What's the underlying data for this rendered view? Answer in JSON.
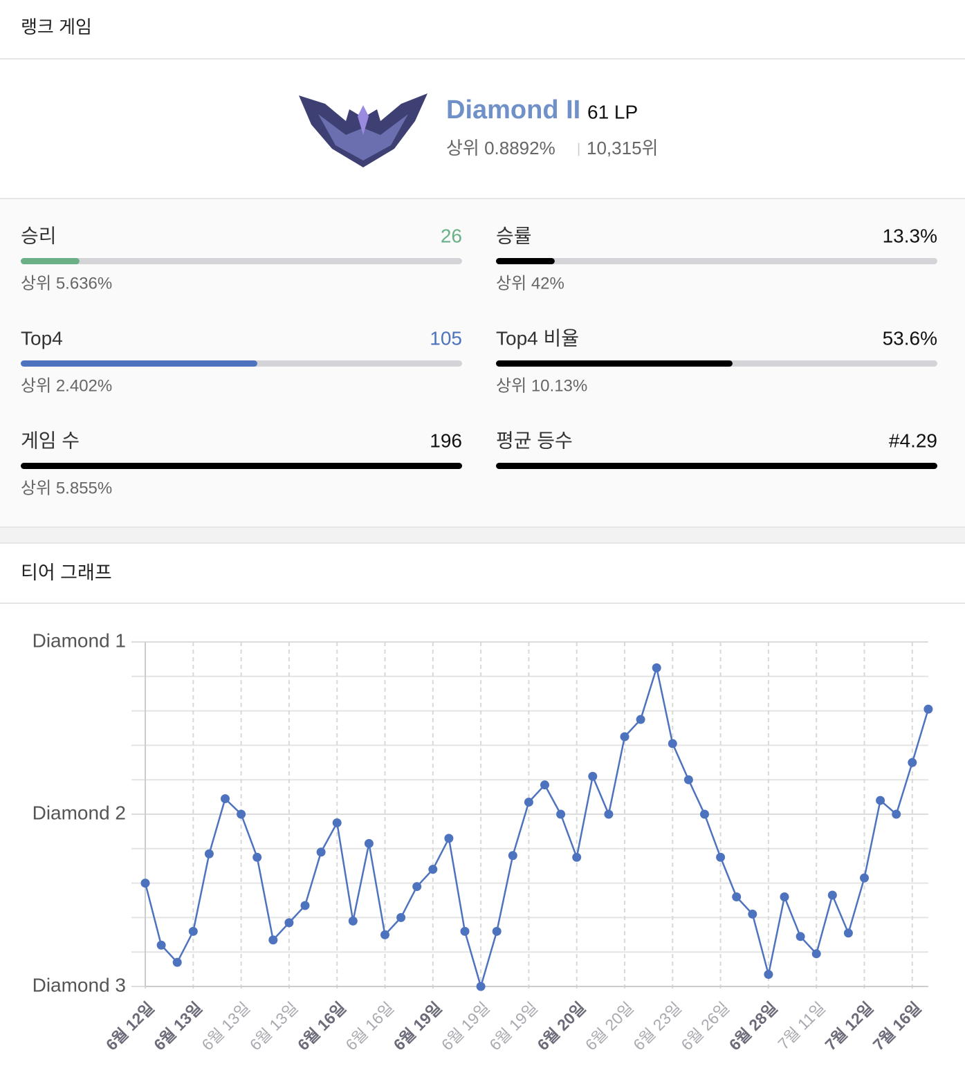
{
  "header": {
    "title": "랭크 게임"
  },
  "rank": {
    "tier": "Diamond II",
    "lp": "61 LP",
    "top": "상위 0.8892%",
    "separator": "|",
    "position": "10,315위"
  },
  "stats": [
    {
      "label": "승리",
      "value": "26",
      "bar_percent": 13.3,
      "color": "#6aaf86",
      "sub": "상위 5.636%"
    },
    {
      "label": "승률",
      "value": "13.3%",
      "bar_percent": 13.3,
      "color": "#000000",
      "sub": "상위 42%"
    },
    {
      "label": "Top4",
      "value": "105",
      "bar_percent": 53.6,
      "color": "#4e73be",
      "sub": "상위 2.402%"
    },
    {
      "label": "Top4 비율",
      "value": "53.6%",
      "bar_percent": 53.6,
      "color": "#000000",
      "sub": "상위 10.13%"
    },
    {
      "label": "게임 수",
      "value": "196",
      "bar_percent": 100,
      "color": "#000000",
      "sub": "상위 5.855%"
    },
    {
      "label": "평균 등수",
      "value": "#4.29",
      "bar_percent": 100,
      "color": "#000000"
    }
  ],
  "graph_header": {
    "title": "티어 그래프"
  },
  "chart_data": {
    "type": "line",
    "color": "#4e73be",
    "grid": true,
    "categories": [
      "6월 12일",
      null,
      null,
      "6월 13일",
      null,
      null,
      "6월 13일",
      null,
      null,
      "6월 13일",
      null,
      null,
      "6월 16일",
      null,
      null,
      "6월 16일",
      null,
      null,
      "6월 19일",
      null,
      null,
      "6월 19일",
      null,
      null,
      "6월 19일",
      null,
      null,
      "6월 20일",
      null,
      null,
      "6월 20일",
      null,
      null,
      "6월 23일",
      null,
      null,
      "6월 26일",
      null,
      null,
      "6월 28일",
      null,
      null,
      "7월 11일",
      null,
      null,
      "7월 12일",
      null,
      null,
      "7월 16일",
      null
    ],
    "bold_categories": [
      0,
      3,
      12,
      18,
      27,
      39,
      45,
      48
    ],
    "values": [
      60,
      24,
      14,
      32,
      77,
      109,
      100,
      75,
      27,
      37,
      47,
      78,
      95,
      38,
      83,
      30,
      40,
      58,
      68,
      86,
      32,
      0,
      32,
      76,
      107,
      117,
      100,
      75,
      122,
      100,
      145,
      155,
      185,
      141,
      120,
      100,
      75,
      52,
      42,
      7,
      52,
      29,
      19,
      53,
      31,
      63,
      108,
      100,
      130,
      161
    ],
    "ylim": [
      0,
      200
    ],
    "yticks": [
      {
        "value": 0,
        "label": "Diamond 3"
      },
      {
        "value": 100,
        "label": "Diamond 2"
      },
      {
        "value": 200,
        "label": "Diamond 1"
      }
    ],
    "minor_yticks": [
      20,
      40,
      60,
      80,
      120,
      140,
      160,
      180
    ]
  }
}
